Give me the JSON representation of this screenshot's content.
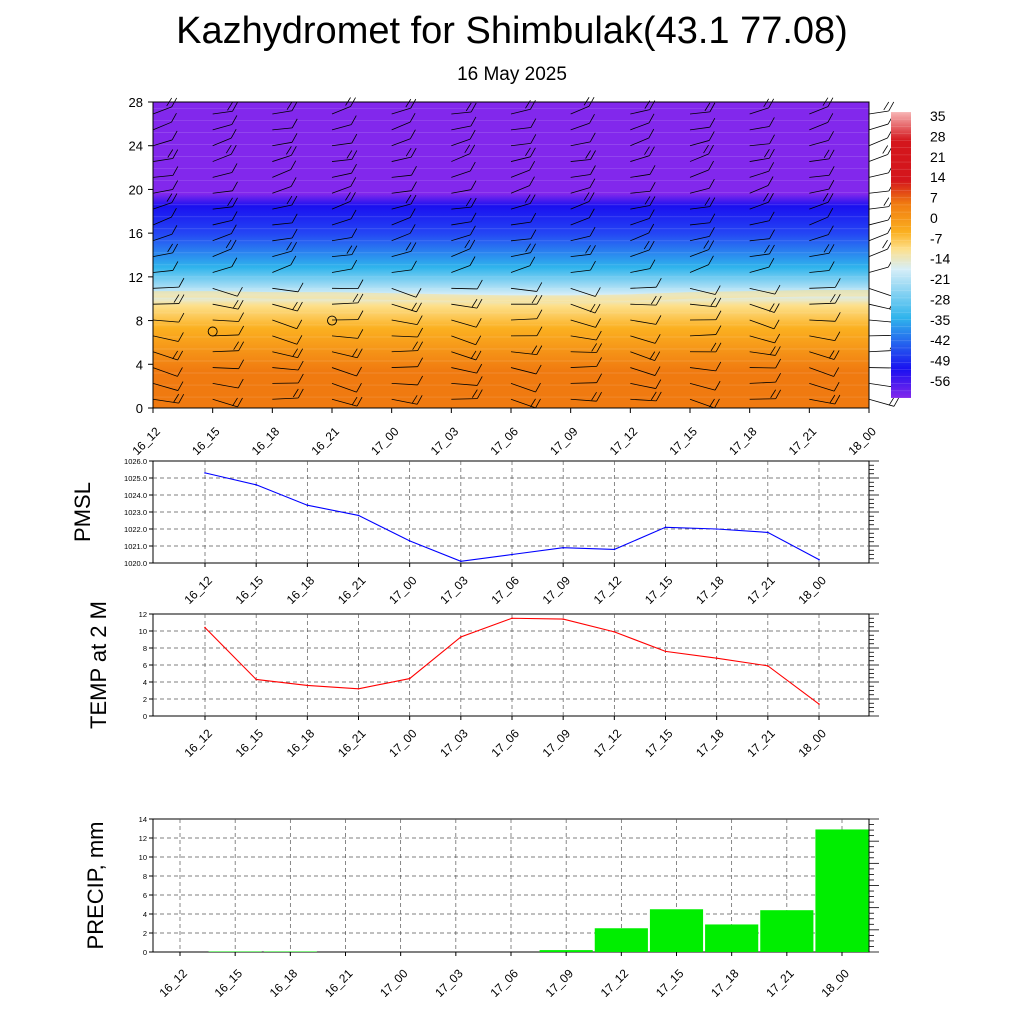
{
  "title": "Kazhydromet for Shimbulak(43.1 77.08)",
  "subtitle": "16 May 2025",
  "time_labels": [
    "16_12",
    "16_15",
    "16_18",
    "16_21",
    "17_00",
    "17_03",
    "17_06",
    "17_09",
    "17_12",
    "17_15",
    "17_18",
    "17_21",
    "18_00"
  ],
  "chart_data": [
    {
      "type": "heatmap",
      "name": "temperature-cross-section",
      "x": [
        "16_12",
        "16_15",
        "16_18",
        "16_21",
        "17_00",
        "17_03",
        "17_06",
        "17_09",
        "17_12",
        "17_15",
        "17_18",
        "17_21",
        "18_00"
      ],
      "y_ticks": [
        0,
        4,
        8,
        12,
        16,
        20,
        24,
        28
      ],
      "ylim": [
        0,
        28
      ],
      "colorbar_labels": [
        "35",
        "28",
        "21",
        "14",
        "7",
        "0",
        "-7",
        "-14",
        "-21",
        "-28",
        "-35",
        "-42",
        "-49",
        "-56"
      ],
      "colors": {
        "hot": "#f07a10",
        "warm": "#fbb020",
        "yellow": "#fde08c",
        "pale": "#d6eef8",
        "cyan": "#2fb4ec",
        "blue": "#2446f4",
        "deep": "#1a10f0",
        "violet": "#8228ec",
        "red": "#d4161c",
        "pink": "#f7b6b6"
      },
      "freezing_level": [
        10.1,
        10.1,
        10.0,
        10.0,
        9.9,
        9.8,
        9.7,
        9.7,
        9.8,
        10.0,
        10.1,
        10.2,
        10.2
      ],
      "wind_barbs": true
    },
    {
      "type": "line",
      "name": "PMSL",
      "ylabel": "PMSL",
      "x": [
        "16_12",
        "16_15",
        "16_18",
        "16_21",
        "17_00",
        "17_03",
        "17_06",
        "17_09",
        "17_12",
        "17_15",
        "17_18",
        "17_21",
        "18_00"
      ],
      "values": [
        1025.3,
        1024.6,
        1023.4,
        1022.8,
        1021.3,
        1020.1,
        1020.5,
        1020.9,
        1020.8,
        1022.1,
        1022.0,
        1021.8,
        1020.2
      ],
      "ylim": [
        1020.0,
        1026.0
      ],
      "y_ticks": [
        "1020.0",
        "1021.0",
        "1022.0",
        "1023.0",
        "1024.0",
        "1025.0",
        "1026.0"
      ],
      "color": "#0000ff",
      "grid": true
    },
    {
      "type": "line",
      "name": "TEMP at 2 M",
      "ylabel": "TEMP at 2 M",
      "x": [
        "16_12",
        "16_15",
        "16_18",
        "16_21",
        "17_00",
        "17_03",
        "17_06",
        "17_09",
        "17_12",
        "17_15",
        "17_18",
        "17_21",
        "18_00"
      ],
      "values": [
        10.4,
        4.3,
        3.6,
        3.2,
        4.4,
        9.3,
        11.5,
        11.4,
        9.9,
        7.6,
        6.8,
        5.9,
        1.4
      ],
      "ylim": [
        0,
        12
      ],
      "y_ticks": [
        "0",
        "2",
        "4",
        "6",
        "8",
        "10",
        "12"
      ],
      "color": "#ff0000",
      "grid": true
    },
    {
      "type": "bar",
      "name": "PRECIP, mm",
      "ylabel": "PRECIP, mm",
      "categories": [
        "16_12",
        "16_15",
        "16_18",
        "16_21",
        "17_00",
        "17_03",
        "17_06",
        "17_09",
        "17_12",
        "17_15",
        "17_18",
        "17_21",
        "18_00"
      ],
      "values": [
        0,
        0.05,
        0.05,
        0,
        0,
        0,
        0,
        0.2,
        2.5,
        4.5,
        2.9,
        4.4,
        12.9
      ],
      "ylim": [
        0,
        14
      ],
      "y_ticks": [
        "0",
        "2",
        "4",
        "6",
        "8",
        "10",
        "12",
        "14"
      ],
      "color": "#00ee00",
      "grid": true
    }
  ]
}
